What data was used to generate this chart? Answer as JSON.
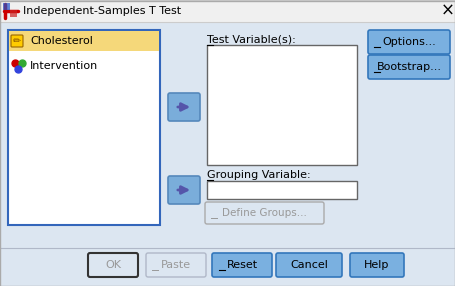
{
  "title": "Independent-Samples T Test",
  "bg_color": "#dce6f1",
  "title_bar_color": "#f0f0f0",
  "var1": "Cholesterol",
  "var2": "Intervention",
  "var1_highlight": "#f5d87a",
  "list_bg": "#ffffff",
  "list_border": "#3366bb",
  "box_bg": "#ffffff",
  "box_border": "#666666",
  "label_test": "Test Variable(s):",
  "label_group": "Grouping Variable:",
  "btn_options": "Options...",
  "btn_bootstrap": "Bootstrap...",
  "btn_ok": "OK",
  "btn_paste": "Paste",
  "btn_reset": "Reset",
  "btn_cancel": "Cancel",
  "btn_help": "Help",
  "btn_define": "Define Groups...",
  "arrow_color": "#5555aa",
  "arrow_btn_color": "#7aadda",
  "arrow_btn_border": "#5588bb",
  "btn_active_color": "#7ab0e0",
  "btn_active_border": "#3377bb",
  "btn_inactive_color": "#dce6f1",
  "btn_inactive_border": "#999999",
  "ok_border": "#333333",
  "text_inactive": "#999999",
  "icon_red": "#cc2222",
  "icon_blue": "#2244cc"
}
